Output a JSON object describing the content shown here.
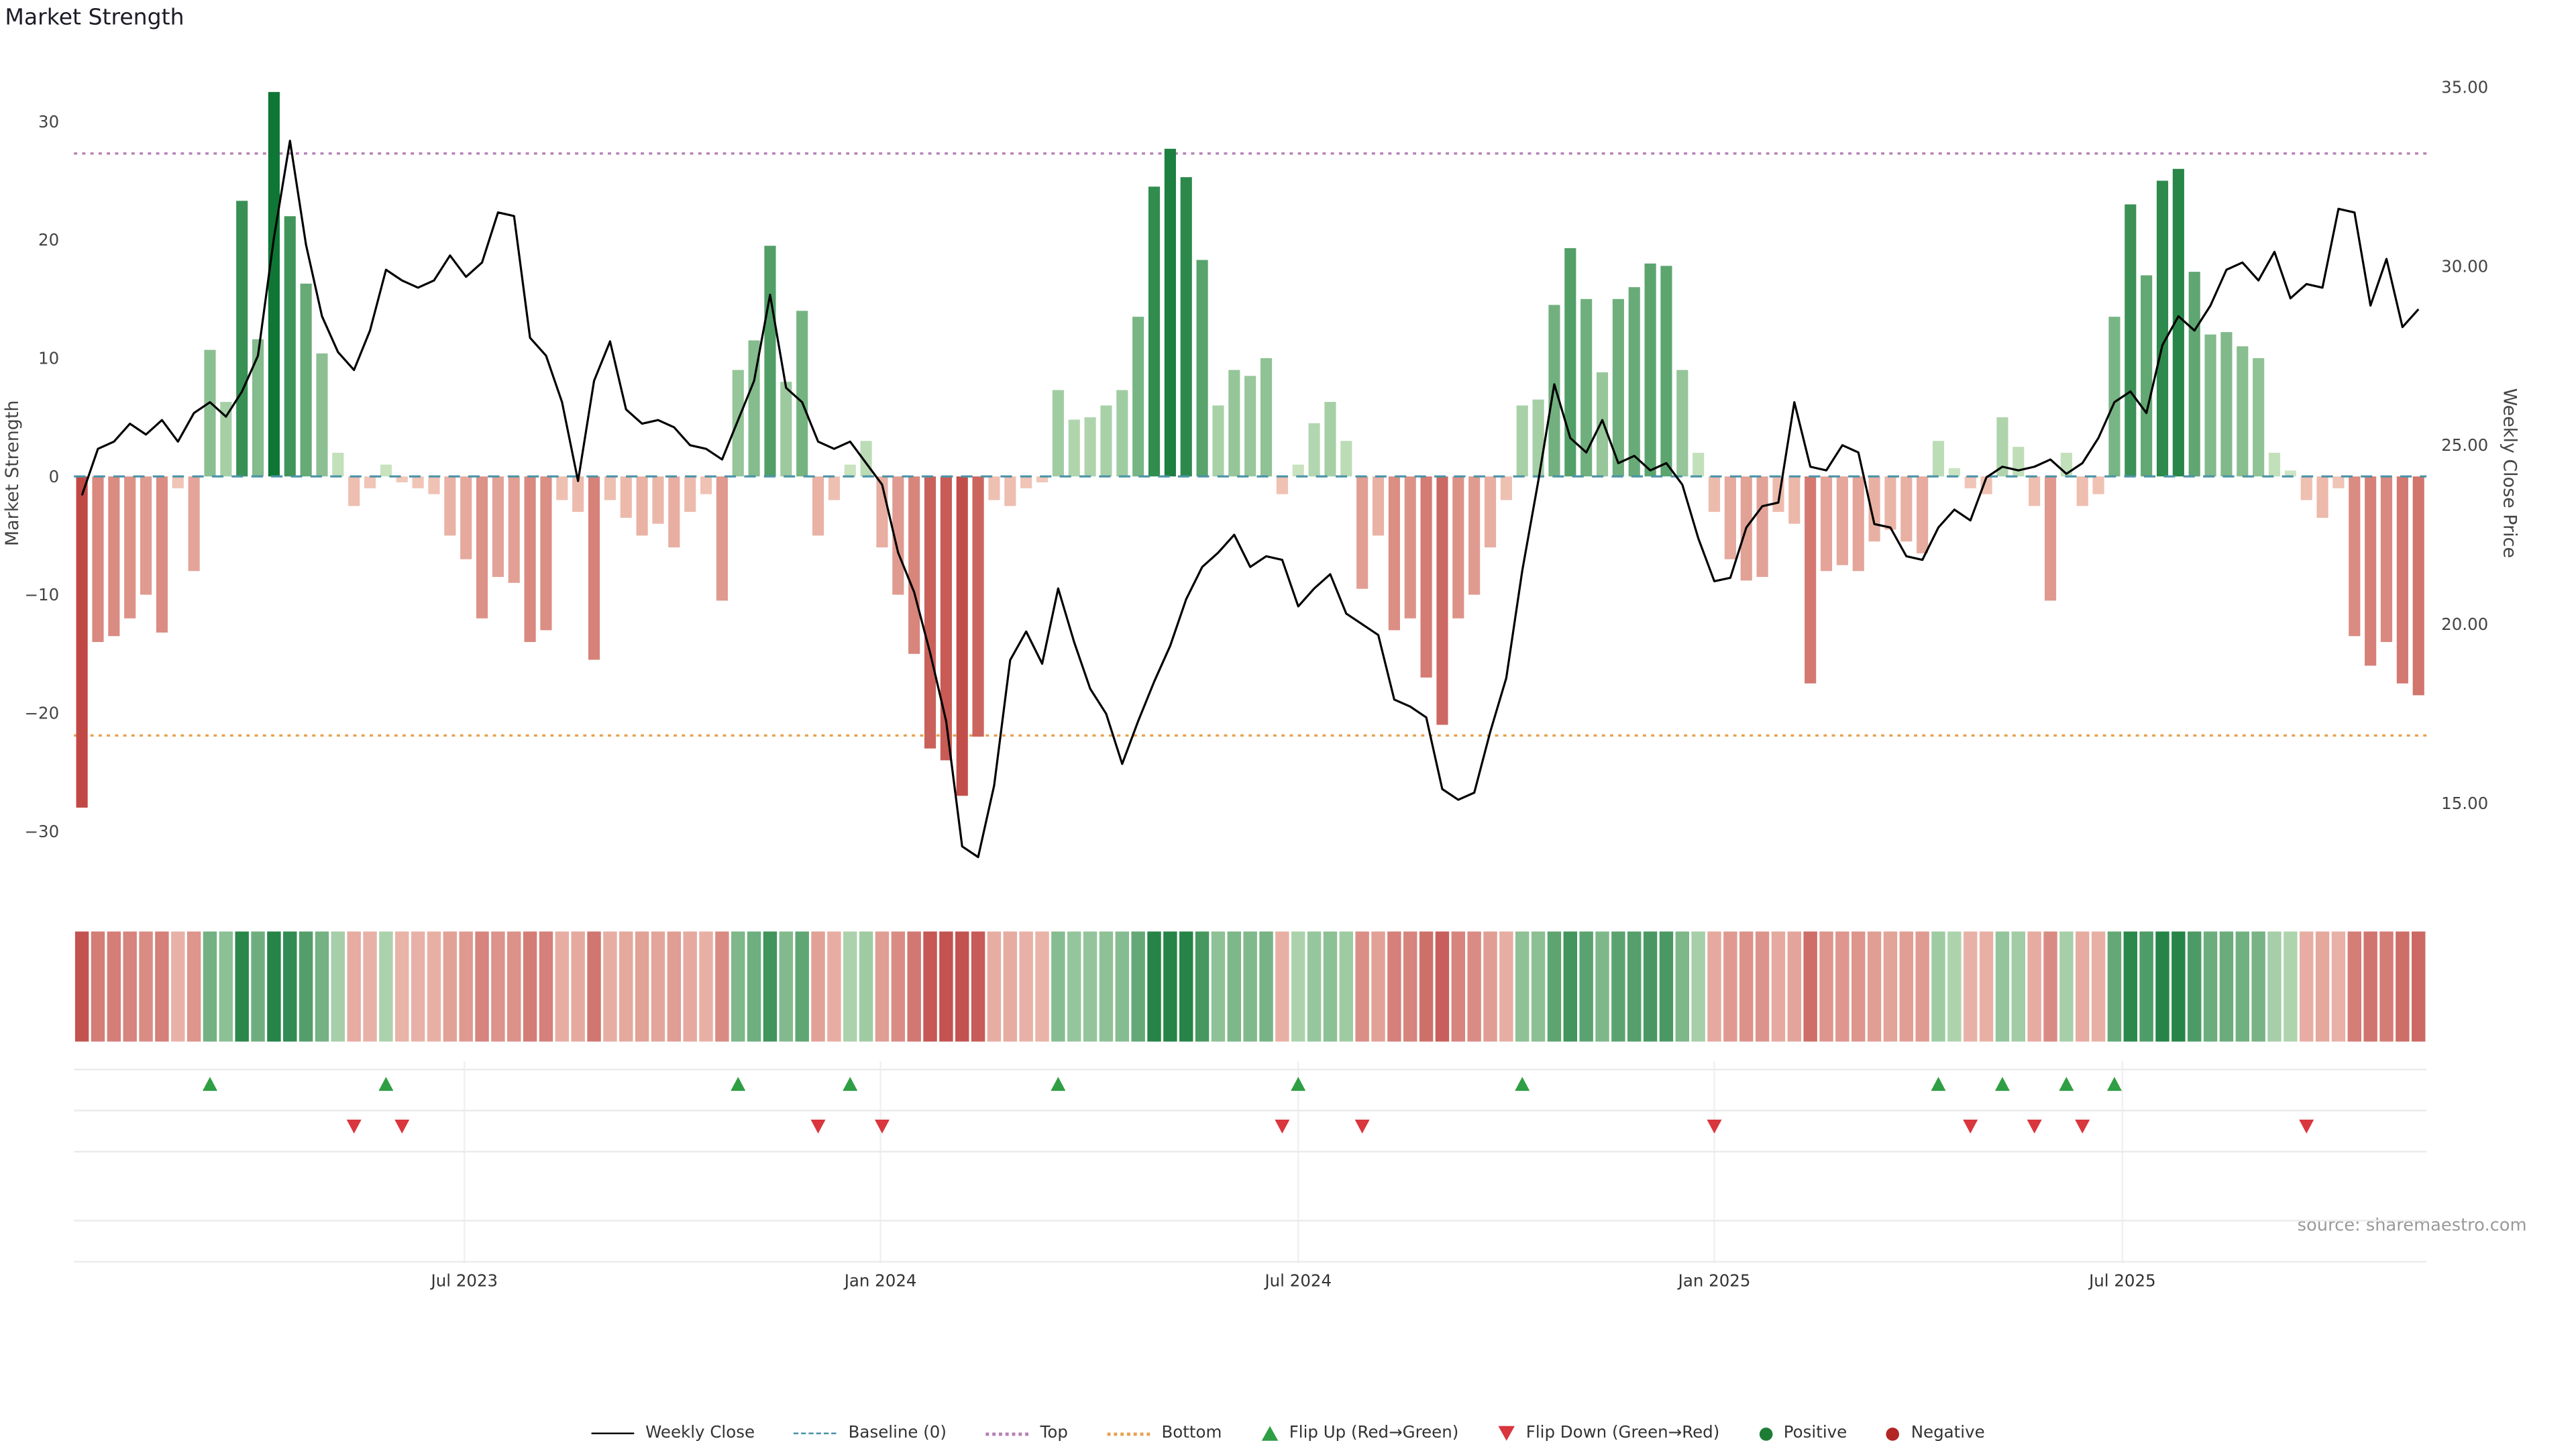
{
  "chart_data": {
    "type": "bar",
    "title": "Market Strength",
    "ylabel_left": "Market Strength",
    "ylabel_right": "Weekly Close Price",
    "source": "source: sharemaestro.com",
    "x_tick_labels": [
      "Jul 2023",
      "Jan 2024",
      "Jul 2024",
      "Jan 2025",
      "Jul 2025"
    ],
    "x_tick_indices": [
      24.4,
      50.4,
      76.5,
      102.5,
      128.0
    ],
    "yticks_left": [
      30,
      20,
      10,
      0,
      -10,
      -20,
      -30
    ],
    "yticks_right": [
      35,
      30,
      25,
      20,
      15
    ],
    "ylim_left": [
      -35,
      35
    ],
    "ylim_right": [
      13,
      35.5
    ],
    "top_level": 27.3,
    "bottom_level": -21.9,
    "baseline": 0,
    "legend_position": "bottom-center",
    "grid": false,
    "series": [
      {
        "name": "Market Strength",
        "type": "bar",
        "axis": "left",
        "values": [
          -28,
          -14,
          -13.5,
          -12,
          -10,
          -13.2,
          -1,
          -8,
          10.7,
          6.3,
          23.3,
          11.6,
          32.5,
          22,
          16.3,
          10.4,
          2,
          -2.5,
          -1,
          1,
          -0.5,
          -1,
          -1.5,
          -5,
          -7,
          -12,
          -8.5,
          -9,
          -14,
          -13,
          -2,
          -3,
          -15.5,
          -2,
          -3.5,
          -5,
          -4,
          -6,
          -3,
          -1.5,
          -10.5,
          9,
          11.5,
          19.5,
          8,
          14,
          -5,
          -2,
          1,
          3,
          -6,
          -10,
          -15,
          -23,
          -24,
          -27,
          -22,
          -2,
          -2.5,
          -1,
          -0.5,
          7.3,
          4.8,
          5,
          6,
          7.3,
          13.5,
          24.5,
          27.7,
          25.3,
          18.3,
          6,
          9,
          8.5,
          10,
          -1.5,
          1,
          4.5,
          6.3,
          3,
          -9.5,
          -5,
          -13,
          -12,
          -17,
          -21,
          -12,
          -10,
          -6,
          -2,
          6,
          6.5,
          14.5,
          19.3,
          15,
          8.8,
          15,
          16,
          18,
          17.8,
          9,
          2,
          -3,
          -7,
          -8.8,
          -8.5,
          -3,
          -4,
          -17.5,
          -8,
          -7.5,
          -8,
          -5.5,
          -4.5,
          -5.5,
          -6.5,
          3,
          0.7,
          -1,
          -1.5,
          5,
          2.5,
          -2.5,
          -10.5,
          2,
          -2.5,
          -1.5,
          13.5,
          23,
          17,
          25,
          26,
          17.3,
          12,
          12.2,
          11,
          10,
          2,
          0.5,
          -2,
          -3.5,
          -1,
          -13.5,
          -16,
          -14,
          -17.5,
          -18.5
        ]
      },
      {
        "name": "Weekly Close",
        "type": "line",
        "axis": "right",
        "values": [
          23.6,
          24.9,
          25.1,
          25.6,
          25.3,
          25.7,
          25.1,
          25.9,
          26.2,
          25.8,
          26.5,
          27.5,
          30.8,
          33.5,
          30.6,
          28.6,
          27.6,
          27.1,
          28.2,
          29.9,
          29.6,
          29.4,
          29.6,
          30.3,
          29.7,
          30.1,
          31.5,
          31.4,
          28.0,
          27.5,
          26.2,
          24.0,
          26.8,
          27.9,
          26.0,
          25.6,
          25.7,
          25.5,
          25.0,
          24.9,
          24.6,
          25.7,
          26.8,
          29.2,
          26.6,
          26.2,
          25.1,
          24.9,
          25.1,
          24.5,
          23.9,
          22.0,
          20.9,
          19.2,
          17.3,
          13.8,
          13.5,
          15.5,
          19.0,
          19.8,
          18.9,
          21.0,
          19.5,
          18.2,
          17.5,
          16.1,
          17.3,
          18.4,
          19.4,
          20.7,
          21.6,
          22.0,
          22.5,
          21.6,
          21.9,
          21.8,
          20.5,
          21.0,
          21.4,
          20.3,
          20.0,
          19.7,
          17.9,
          17.7,
          17.4,
          15.4,
          15.1,
          15.3,
          17.0,
          18.5,
          21.5,
          24.0,
          26.7,
          25.2,
          24.8,
          25.7,
          24.5,
          24.7,
          24.3,
          24.5,
          23.9,
          22.4,
          21.2,
          21.3,
          22.7,
          23.3,
          23.4,
          26.2,
          24.4,
          24.3,
          25.0,
          24.8,
          22.8,
          22.7,
          21.9,
          21.8,
          22.7,
          23.2,
          22.9,
          24.1,
          24.4,
          24.3,
          24.4,
          24.6,
          24.2,
          24.5,
          25.2,
          26.2,
          26.5,
          25.9,
          27.8,
          28.6,
          28.2,
          28.9,
          29.9,
          30.1,
          29.6,
          30.4,
          29.1,
          29.5,
          29.4,
          31.6,
          31.5,
          28.9,
          30.2,
          28.3,
          28.8
        ]
      }
    ]
  },
  "colors": {
    "positive_dark": "#0e7735",
    "positive_light": "#cfe7c4",
    "negative_dark": "#bd403d",
    "negative_light": "#f2c9ba",
    "line": "#000000",
    "baseline": "#4a93a8",
    "top": "#b57fb5",
    "bottom": "#e8a252",
    "flip_up": "#2f9e44",
    "flip_down": "#d9363e",
    "positive_dot": "#1e7d35",
    "negative_dot": "#b22626"
  },
  "legend": {
    "items": [
      {
        "label": "Weekly Close"
      },
      {
        "label": "Baseline (0)"
      },
      {
        "label": "Top"
      },
      {
        "label": "Bottom"
      },
      {
        "label": "Flip Up (Red→Green)"
      },
      {
        "label": "Flip Down (Green→Red)"
      },
      {
        "label": "Positive"
      },
      {
        "label": "Negative"
      }
    ]
  }
}
